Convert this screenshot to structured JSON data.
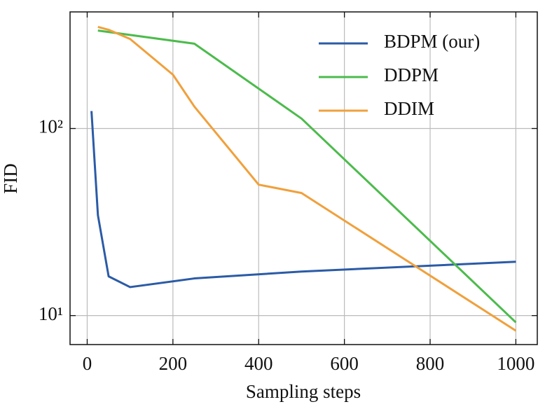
{
  "chart_data": {
    "type": "line",
    "xlabel": "Sampling steps",
    "ylabel": "FID",
    "xlim": [
      -40,
      1050
    ],
    "xticks": [
      0,
      200,
      400,
      600,
      800,
      1000
    ],
    "ylim": [
      7,
      420
    ],
    "yscale": "log",
    "yticks": [
      {
        "value": 10,
        "label": "10¹"
      },
      {
        "value": 100,
        "label": "10²"
      }
    ],
    "grid": true,
    "legend": "upper right",
    "series": [
      {
        "name": "BDPM (our)",
        "color": "#2b5ba6",
        "x": [
          10,
          25,
          50,
          100,
          250,
          500,
          1000
        ],
        "values": [
          124,
          34.4,
          16.2,
          14.2,
          15.8,
          17.2,
          19.4
        ]
      },
      {
        "name": "DDPM",
        "color": "#4cbb4c",
        "x": [
          25,
          250,
          500,
          1000
        ],
        "values": [
          334,
          284,
          113,
          9.2
        ]
      },
      {
        "name": "DDIM",
        "color": "#f0a03c",
        "x": [
          25,
          50,
          100,
          200,
          250,
          400,
          500,
          1000
        ],
        "values": [
          349,
          337,
          301,
          194,
          131,
          50.1,
          45.2,
          8.3
        ]
      }
    ]
  }
}
